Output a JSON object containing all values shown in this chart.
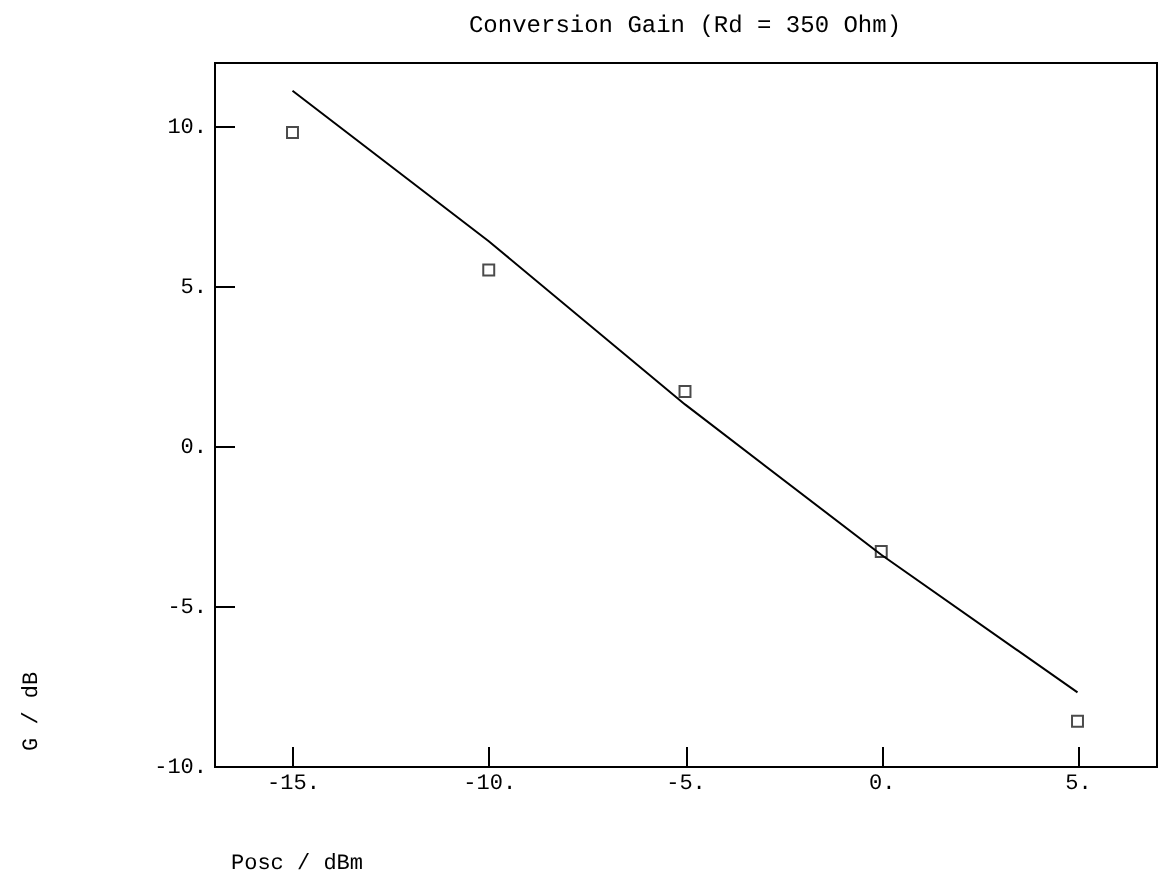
{
  "chart_data": {
    "type": "scatter",
    "title": "Conversion Gain (Rd = 350 Ohm)",
    "xlabel": "Posc / dBm",
    "ylabel": "G / dB",
    "xlim": [
      -17,
      7
    ],
    "ylim": [
      -10,
      12
    ],
    "xticks": [
      {
        "value": -15,
        "label": "-15."
      },
      {
        "value": -10,
        "label": "-10."
      },
      {
        "value": -5,
        "label": "-5."
      },
      {
        "value": 0,
        "label": "0."
      },
      {
        "value": 5,
        "label": "5."
      }
    ],
    "yticks": [
      {
        "value": -10,
        "label": "-10."
      },
      {
        "value": -5,
        "label": "-5."
      },
      {
        "value": 0,
        "label": "0."
      },
      {
        "value": 5,
        "label": "5."
      },
      {
        "value": 10,
        "label": "10."
      }
    ],
    "grid": false,
    "series": [
      {
        "marker": "square",
        "color": "#000000",
        "x": [
          -15,
          -10,
          -5,
          0,
          5
        ],
        "values": [
          9.8,
          5.5,
          1.7,
          -3.3,
          -8.6
        ]
      },
      {
        "type": "line",
        "marker": "none",
        "line_style": "solid",
        "color": "#000000",
        "x": [
          -15,
          -10,
          -5,
          0,
          5
        ],
        "values": [
          11.1,
          6.4,
          1.3,
          -3.4,
          -7.7
        ]
      }
    ]
  }
}
